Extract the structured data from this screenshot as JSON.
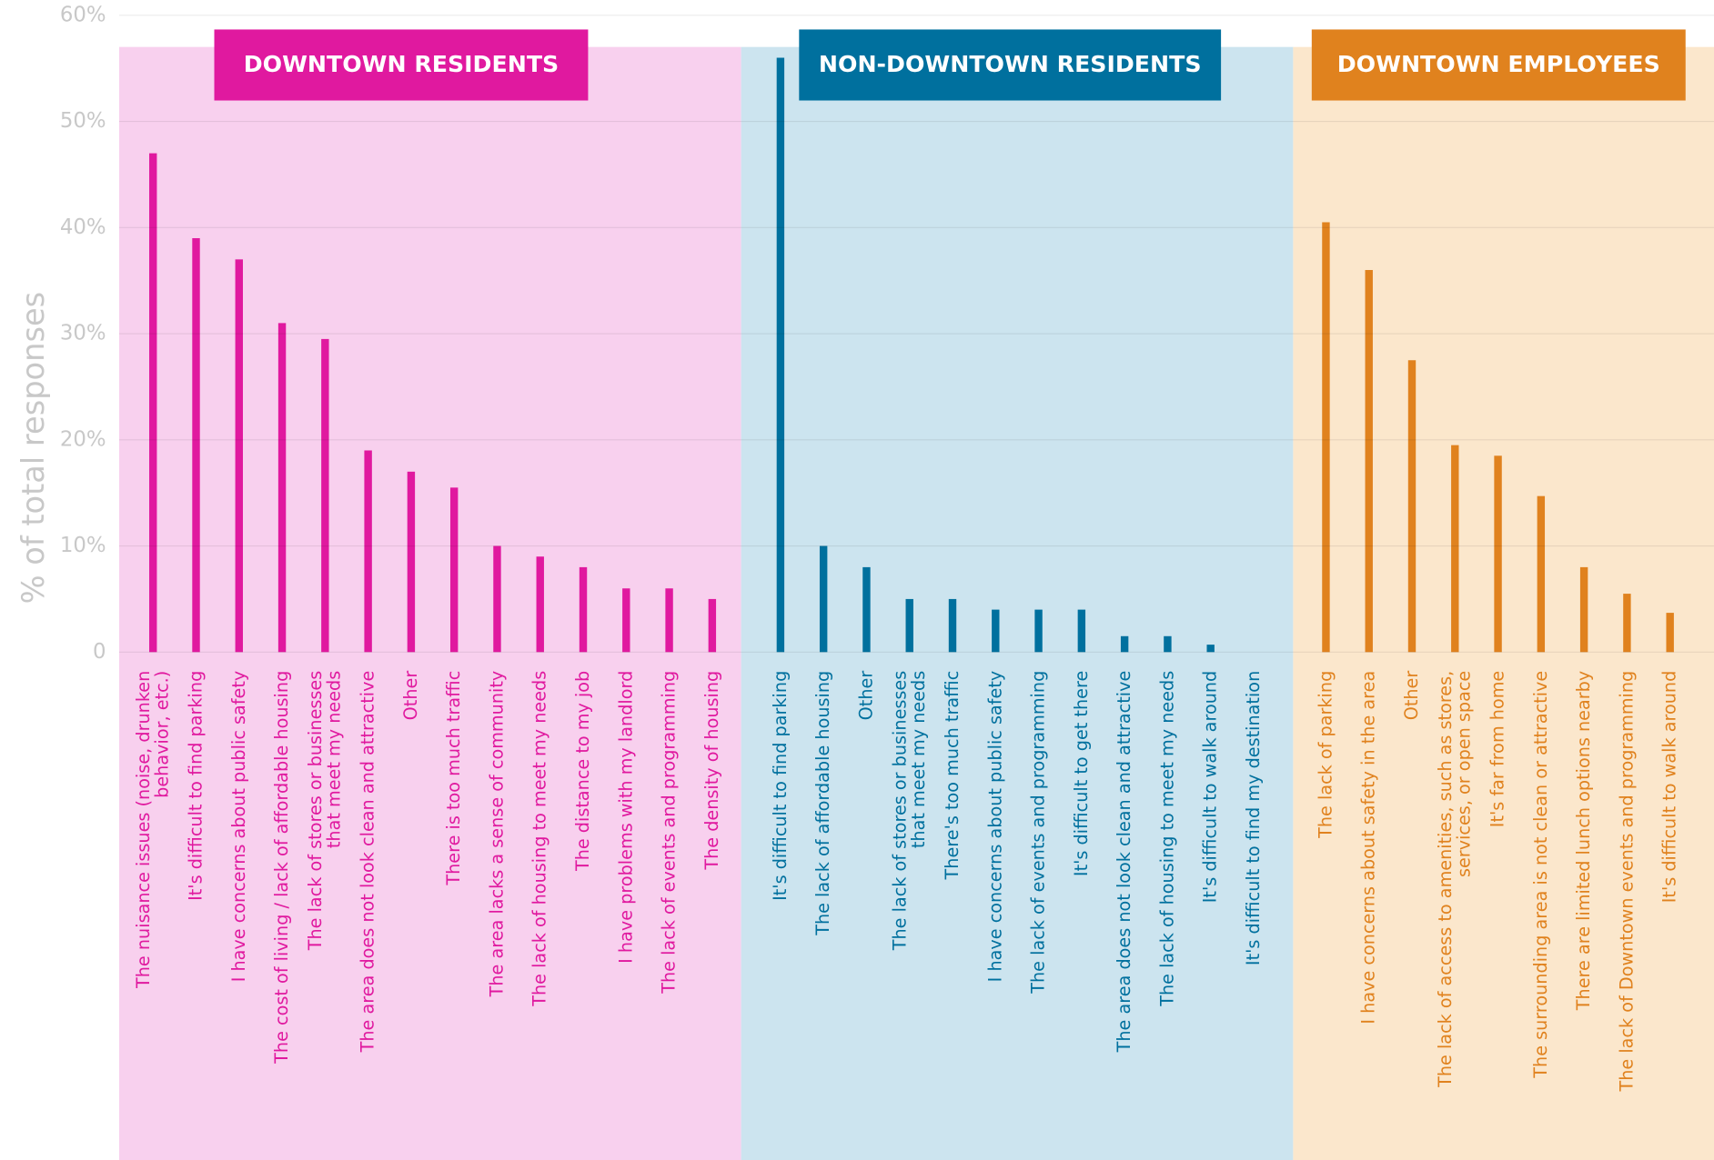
{
  "chart_data": {
    "type": "bar",
    "y_label": "% of total responses",
    "ylim": [
      0,
      60
    ],
    "yticks": [
      0,
      {
        "value": 10,
        "label": "10%"
      },
      {
        "value": 20,
        "label": "20%"
      },
      {
        "value": 30,
        "label": "30%"
      },
      {
        "value": 40,
        "label": "40%"
      },
      {
        "value": 50,
        "label": "50%"
      },
      {
        "value": 60,
        "label": "60%"
      }
    ],
    "grid": true,
    "groups": [
      {
        "name": "DOWNTOWN RESIDENTS",
        "color": "#e0199f",
        "background": "#f8d0ee",
        "categories": [
          "The nuisance issues (noise, drunken\nbehavior, etc.)",
          "It's difficult to find parking",
          "I have concerns about public safety",
          "The cost of living / lack of affordable housing",
          "The lack of stores or businesses\nthat meet my needs",
          "The area does not look clean and attractive",
          "Other",
          "There is too much traffic",
          "The area lacks a sense of community",
          "The lack of housing to meet my needs",
          "The distance to my job",
          "I have problems with my landlord",
          "The lack of events and programming",
          "The density of housing"
        ],
        "values": [
          47,
          39,
          37,
          31,
          29.5,
          19,
          17,
          15.5,
          10,
          9,
          8,
          6,
          6,
          5
        ]
      },
      {
        "name": "NON-DOWNTOWN RESIDENTS",
        "color": "#00709e",
        "background": "#cce4ef",
        "categories": [
          "It's difficult to find parking",
          "The lack of affordable housing",
          "Other",
          "The lack of stores or businesses\nthat meet my needs",
          "There's too much traffic",
          "I have concerns about public safety",
          "The lack of events and programming",
          "It's difficult to get there",
          "The area does not look clean and attractive",
          "The lack of housing to meet my needs",
          "It's difficult to walk around",
          "It's difficult to find my destination"
        ],
        "values": [
          56,
          10,
          8,
          5,
          5,
          4,
          4,
          4,
          1.5,
          1.5,
          0.7,
          0
        ]
      },
      {
        "name": "DOWNTOWN EMPLOYEES",
        "color": "#e0821e",
        "background": "#fbe7cc",
        "categories": [
          "The lack of parking",
          "I have concerns about safety in the area",
          "Other",
          "The lack of access to amenities, such as stores,\nservices, or open space",
          "It's far from home",
          "The surrounding area is not clean or attractive",
          "There are limited lunch options nearby",
          "The lack of Downtown events and programming",
          "It's difficult to walk around"
        ],
        "values": [
          40.5,
          36,
          27.5,
          19.5,
          18.5,
          14.7,
          8,
          5.5,
          3.7
        ]
      }
    ]
  }
}
